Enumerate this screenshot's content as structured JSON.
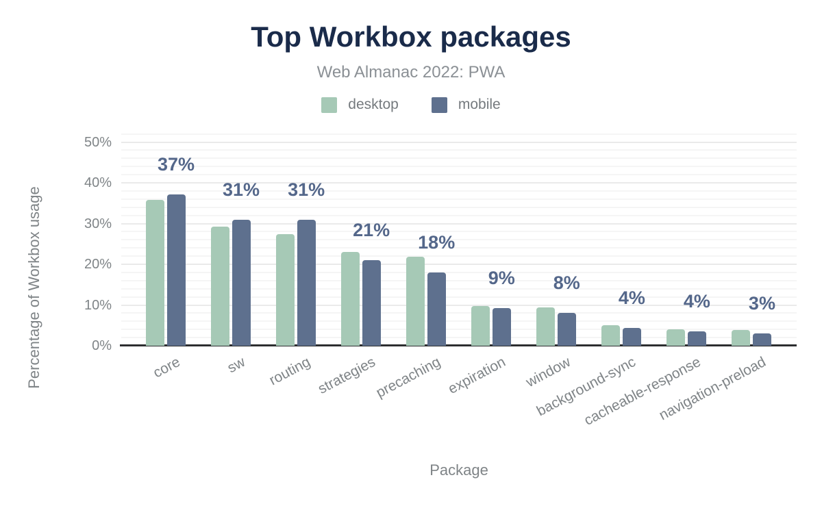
{
  "chart_data": {
    "type": "bar",
    "title": "Top Workbox packages",
    "subtitle": "Web Almanac 2022: PWA",
    "xlabel": "Package",
    "ylabel": "Percentage of Workbox usage",
    "categories": [
      "core",
      "sw",
      "routing",
      "strategies",
      "precaching",
      "expiration",
      "window",
      "background-sync",
      "cacheable-response",
      "navigation-preload"
    ],
    "series": [
      {
        "name": "desktop",
        "color": "#a6c9b6",
        "values": [
          35.8,
          29.2,
          27.4,
          23.1,
          21.9,
          9.7,
          9.4,
          5.1,
          4.1,
          3.9
        ]
      },
      {
        "name": "mobile",
        "color": "#5e708e",
        "values": [
          37.2,
          31.0,
          30.9,
          21.0,
          18.0,
          9.3,
          8.1,
          4.3,
          3.6,
          3.1
        ]
      }
    ],
    "bar_labels": [
      "37%",
      "31%",
      "31%",
      "21%",
      "18%",
      "9%",
      "8%",
      "4%",
      "4%",
      "3%"
    ],
    "bar_labels_note": "rounded mobile values shown above the mobile bar of each group",
    "ylim": [
      0,
      52
    ],
    "yticks": [
      0,
      10,
      20,
      30,
      40,
      50
    ],
    "ytick_suffix": "%",
    "grid": {
      "minor_every": 2,
      "major_every": 10,
      "orientation": "horizontal"
    },
    "legend_position": "top-center"
  },
  "colors": {
    "title": "#1a2b4a",
    "subtitle": "#8b9095",
    "axis_text": "#7f8487",
    "value_label": "#54678a",
    "desktop_bar": "#a6c9b6",
    "mobile_bar": "#5e708e",
    "baseline": "#2d2e30",
    "grid_major": "#eaeaea",
    "grid_minor": "#f5f5f5",
    "background": "#ffffff"
  }
}
